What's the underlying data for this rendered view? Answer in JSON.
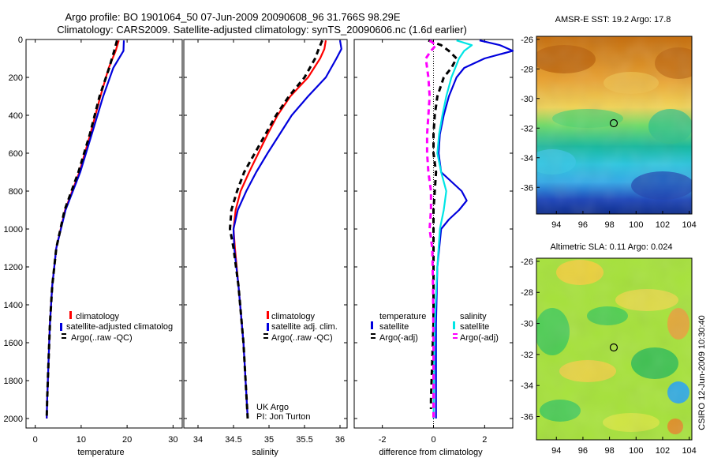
{
  "figure": {
    "title_line1": "Argo profile: BO 1901064_50 07-Jun-2009 20090608_96 31.766S 98.29E",
    "title_line2": "Climatology: CARS2009. Satellite-adjusted climatology: synTS_20090606.nc (1.6d earlier)",
    "side_label": "CSIRO 12-Jun-2009 10:30:40"
  },
  "chart_data": [
    {
      "type": "line",
      "panel": "temperature",
      "xlabel": "temperature",
      "xlim": [
        -2,
        32
      ],
      "xticks": [
        0,
        10,
        20,
        30
      ],
      "ylim": [
        2050,
        0
      ],
      "yticks": [
        0,
        200,
        400,
        600,
        800,
        1000,
        1200,
        1400,
        1600,
        1800,
        2000
      ],
      "legend": {
        "position": "lower-center",
        "entries": [
          "climatology",
          "satellite-adjusted climatolog",
          "Argo(..raw -QC)"
        ]
      },
      "series": [
        {
          "name": "climatology",
          "color": "#ff0000",
          "dash": "solid",
          "depth": [
            5,
            60,
            150,
            300,
            500,
            700,
            900,
            1100,
            1300,
            1500,
            1700,
            1900,
            2000
          ],
          "values": [
            18.2,
            17.5,
            16.0,
            14.2,
            12.0,
            9.6,
            6.5,
            4.6,
            3.7,
            3.2,
            2.9,
            2.6,
            2.5
          ]
        },
        {
          "name": "satellite-adjusted climatolog",
          "color": "#0000dd",
          "dash": "solid",
          "depth": [
            5,
            60,
            150,
            300,
            500,
            700,
            900,
            1100,
            1300,
            1500,
            1700,
            1900,
            2000
          ],
          "values": [
            19.3,
            19.2,
            17.0,
            14.8,
            12.3,
            9.8,
            6.6,
            4.6,
            3.7,
            3.2,
            2.9,
            2.6,
            2.5
          ]
        },
        {
          "name": "Argo(..raw -QC)",
          "color": "#000000",
          "dash": "dash",
          "depth": [
            5,
            60,
            150,
            300,
            500,
            700,
            900,
            1100,
            1300,
            1500,
            1700,
            1900,
            2000
          ],
          "values": [
            17.8,
            17.2,
            16.1,
            14.0,
            11.9,
            9.4,
            6.4,
            4.6,
            3.7,
            3.2,
            2.9,
            2.6,
            2.5
          ]
        }
      ]
    },
    {
      "type": "line",
      "panel": "salinity",
      "xlabel": "salinity",
      "xlim": [
        33.8,
        36.1
      ],
      "xticks": [
        34,
        34.5,
        35,
        35.5,
        36
      ],
      "xtick_labels": [
        "34",
        "34.5",
        "35",
        "35.5",
        "36"
      ],
      "ylim": [
        2050,
        0
      ],
      "legend": {
        "position": "lower-center",
        "entries": [
          "climatology",
          "satellite adj. clim.",
          "Argo(..raw -QC)"
        ]
      },
      "annotation": [
        "UK Argo",
        "PI: Jon Turton"
      ],
      "series": [
        {
          "name": "climatology",
          "color": "#ff0000",
          "dash": "solid",
          "depth": [
            5,
            50,
            100,
            200,
            300,
            400,
            500,
            600,
            700,
            800,
            900,
            1000,
            1100,
            1300,
            1600,
            2000
          ],
          "values": [
            35.8,
            35.78,
            35.72,
            35.55,
            35.3,
            35.12,
            34.98,
            34.85,
            34.72,
            34.6,
            34.53,
            34.5,
            34.52,
            34.57,
            34.64,
            34.7
          ]
        },
        {
          "name": "satellite adj. clim.",
          "color": "#0000dd",
          "dash": "solid",
          "depth": [
            5,
            50,
            100,
            200,
            300,
            400,
            500,
            600,
            700,
            800,
            900,
            1000,
            1100,
            1300,
            1600,
            2000
          ],
          "values": [
            36.0,
            36.02,
            35.95,
            35.8,
            35.55,
            35.32,
            35.15,
            34.98,
            34.82,
            34.68,
            34.56,
            34.5,
            34.51,
            34.57,
            34.64,
            34.7
          ]
        },
        {
          "name": "Argo(..raw -QC)",
          "color": "#000000",
          "dash": "dash",
          "depth": [
            5,
            50,
            100,
            200,
            300,
            400,
            500,
            600,
            700,
            800,
            900,
            1000,
            1100,
            1300,
            1600,
            2000
          ],
          "values": [
            35.75,
            35.7,
            35.65,
            35.5,
            35.28,
            35.1,
            34.95,
            34.8,
            34.65,
            34.55,
            34.47,
            34.45,
            34.5,
            34.57,
            34.64,
            34.7
          ]
        }
      ]
    },
    {
      "type": "line",
      "panel": "difference",
      "xlabel": "difference from climatology",
      "xlim": [
        -3.1,
        3.1
      ],
      "xticks": [
        -2,
        0,
        2
      ],
      "ylim": [
        2050,
        0
      ],
      "legend": {
        "position": "lower-center",
        "groups": [
          "temperature",
          "salinity"
        ],
        "entries": [
          "satellite",
          "Argo(-adj)",
          "satellite",
          "Argo(-adj)"
        ]
      },
      "series": [
        {
          "name": "temperature satellite",
          "color": "#0000dd",
          "dash": "solid",
          "depth": [
            5,
            30,
            60,
            100,
            150,
            200,
            300,
            400,
            500,
            600,
            700,
            800,
            850,
            900,
            950,
            1000,
            1200,
            1500,
            2000
          ],
          "values": [
            1.8,
            2.6,
            3.1,
            2.0,
            1.2,
            0.9,
            0.6,
            0.4,
            0.25,
            0.2,
            0.3,
            1.1,
            1.3,
            1.0,
            0.6,
            0.3,
            0.15,
            0.1,
            0.1
          ]
        },
        {
          "name": "temperature Argo(-adj)",
          "color": "#000000",
          "dash": "dash",
          "depth": [
            5,
            30,
            60,
            100,
            150,
            200,
            300,
            400,
            500,
            600,
            700,
            800,
            900,
            1000,
            1500,
            1900,
            1950
          ],
          "values": [
            -0.2,
            0.3,
            0.6,
            0.9,
            0.7,
            0.4,
            0.15,
            0.05,
            0.0,
            0.0,
            0.1,
            0.05,
            0.0,
            0.0,
            0.0,
            -0.1,
            -0.1
          ]
        },
        {
          "name": "salinity satellite",
          "color": "#00e5e5",
          "dash": "solid",
          "depth": [
            5,
            30,
            60,
            100,
            150,
            200,
            300,
            400,
            500,
            600,
            700,
            800,
            900,
            1000,
            1200,
            1500,
            2000
          ],
          "values": [
            0.9,
            1.5,
            1.2,
            1.0,
            0.85,
            0.7,
            0.5,
            0.35,
            0.22,
            0.15,
            0.3,
            0.5,
            0.4,
            0.25,
            0.15,
            0.05,
            0.0
          ]
        },
        {
          "name": "salinity Argo(-adj)",
          "color": "#ff00ff",
          "dash": "dash",
          "depth": [
            5,
            30,
            60,
            100,
            200,
            300,
            400,
            500,
            600,
            700,
            800,
            900,
            1000,
            1100,
            1300,
            1600,
            2000
          ],
          "values": [
            -0.15,
            0.1,
            -0.1,
            -0.3,
            -0.2,
            -0.15,
            -0.2,
            -0.25,
            -0.25,
            -0.2,
            -0.1,
            -0.1,
            -0.15,
            -0.05,
            -0.02,
            0.0,
            0.0
          ]
        }
      ]
    },
    {
      "type": "heatmap",
      "panel": "sst-map",
      "title": "AMSR-E SST: 19.2  Argo: 17.8",
      "xlim": [
        92.5,
        104.2
      ],
      "ylim": [
        -37.8,
        -25.8
      ],
      "xticks": [
        94,
        96,
        98,
        100,
        102,
        104
      ],
      "yticks": [
        -26,
        -28,
        -30,
        -32,
        -34,
        -36
      ],
      "marker": {
        "lon": 98.29,
        "lat": -31.77
      }
    },
    {
      "type": "heatmap",
      "panel": "sla-map",
      "title": "Altimetric SLA: 0.11  Argo: 0.024",
      "xlim": [
        92.5,
        104.2
      ],
      "ylim": [
        -37.5,
        -25.8
      ],
      "xticks": [
        94,
        96,
        98,
        100,
        102,
        104
      ],
      "yticks": [
        -26,
        -28,
        -30,
        -32,
        -34,
        -36
      ],
      "marker": {
        "lon": 98.29,
        "lat": -31.77
      }
    }
  ]
}
